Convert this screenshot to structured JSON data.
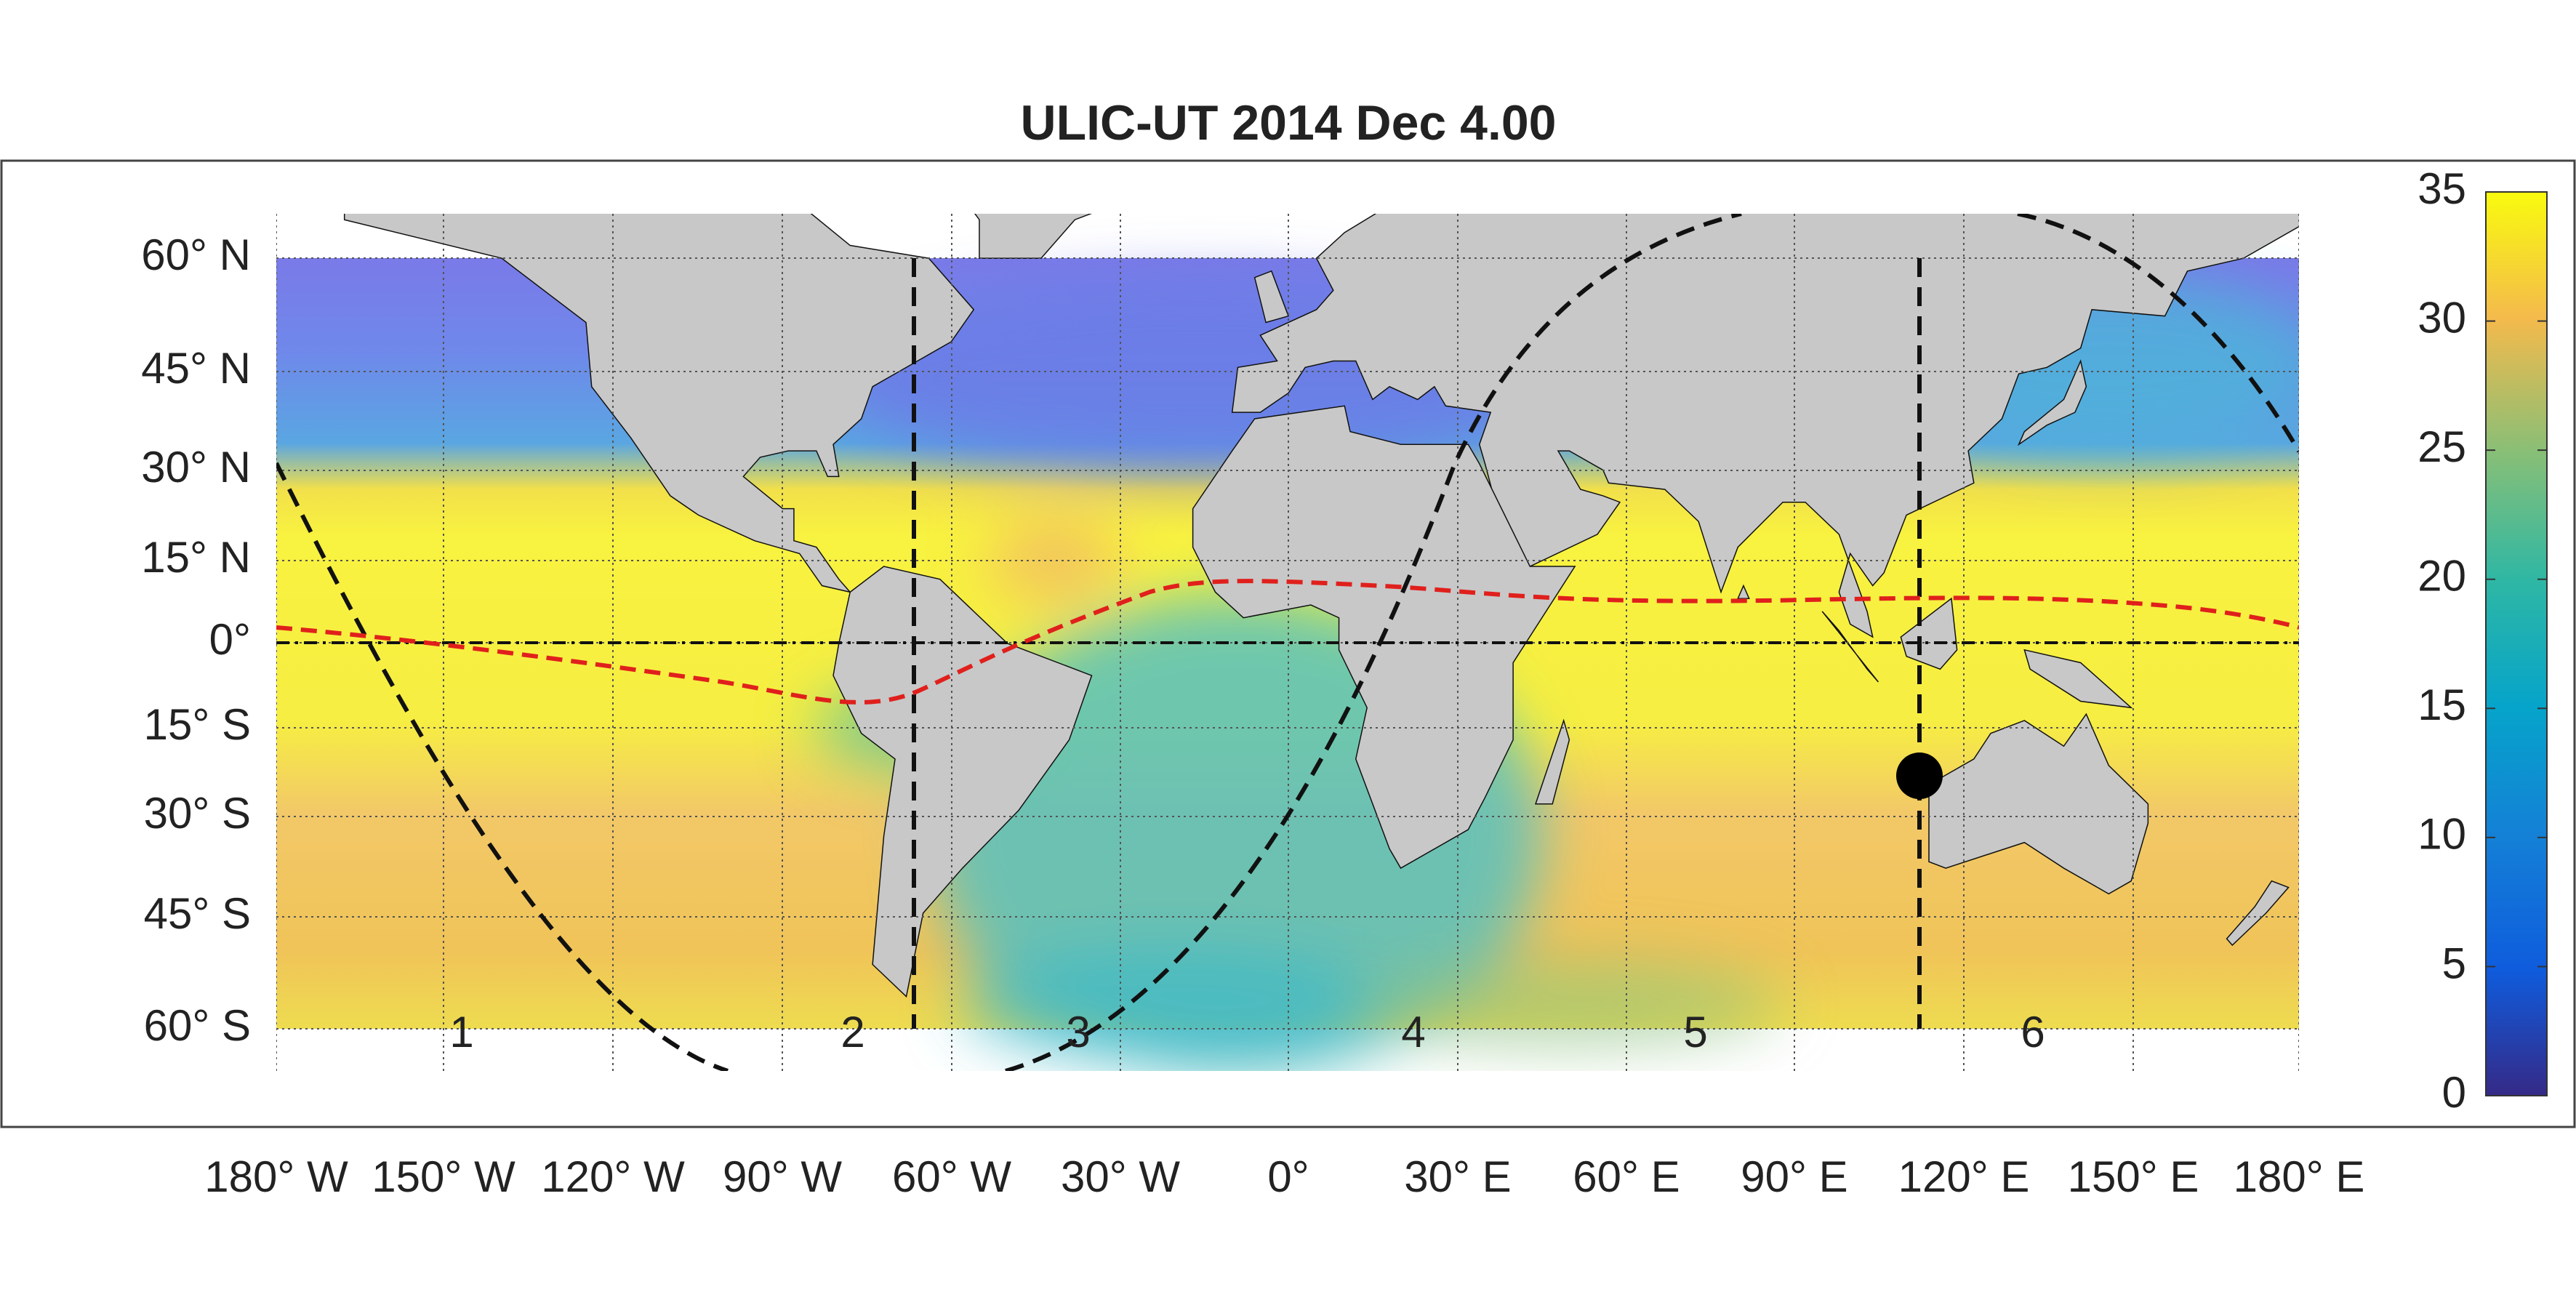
{
  "title": "ULIC-UT 2014 Dec  4.00",
  "map": {
    "lat_labels": [
      "60° N",
      "45° N",
      "30° N",
      "15° N",
      "0°",
      "15° S",
      "30° S",
      "45° S",
      "60° S"
    ],
    "lon_labels": [
      "180° W",
      "150° W",
      "120° W",
      "90° W",
      "60° W",
      "30° W",
      "0°",
      "30° E",
      "60° E",
      "90° E",
      "120° E",
      "150° E",
      "180° E"
    ],
    "region_labels": [
      "1",
      "2",
      "3",
      "4",
      "5",
      "6"
    ]
  },
  "colorbar": {
    "clim": [
      0,
      35
    ],
    "ticks": [
      0,
      5,
      10,
      15,
      20,
      25,
      30,
      35
    ]
  }
}
